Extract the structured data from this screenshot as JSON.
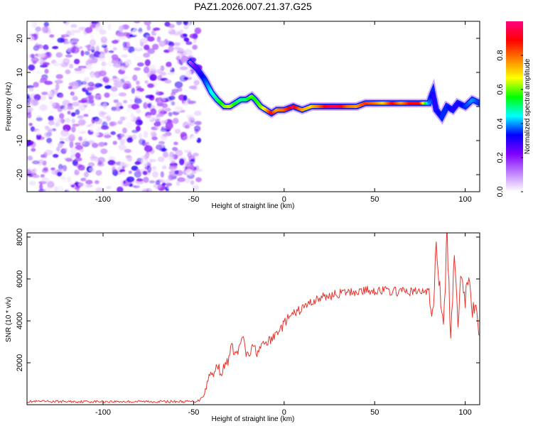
{
  "title": "PAZ1.2026.007.21.37.G25",
  "chart_data": [
    {
      "type": "heatmap",
      "title": "PAZ1.2026.007.21.37.G25",
      "xlabel": "Height of straight line (km)",
      "ylabel": "Frequency (Hz)",
      "xlim": [
        -142,
        108
      ],
      "ylim": [
        -25,
        25
      ],
      "x_ticks": [
        -100,
        -50,
        0,
        50,
        100
      ],
      "y_ticks": [
        -20,
        -10,
        0,
        10,
        20
      ],
      "colorbar": {
        "label": "Normalized spectral amplitude",
        "range": [
          0,
          1
        ],
        "ticks": [
          0.0,
          0.2,
          0.4,
          0.6,
          0.8
        ],
        "colors": [
          "#ffffff",
          "#c080ff",
          "#8000ff",
          "#0000ff",
          "#00ffff",
          "#00ff00",
          "#ffff00",
          "#ff8000",
          "#ff0000",
          "#ff0080"
        ]
      },
      "noise_region": {
        "x_range": [
          -142,
          -47
        ],
        "y_range": [
          -25,
          25
        ],
        "amplitude_range": [
          0.0,
          0.2
        ]
      },
      "signal_track": {
        "x": [
          -52,
          -48,
          -44,
          -40,
          -37,
          -33,
          -30,
          -27,
          -24,
          -21,
          -18,
          -16,
          -13,
          -10,
          -7,
          -4,
          0,
          5,
          10,
          15,
          20,
          25,
          30,
          35,
          40,
          45,
          50,
          55,
          60,
          65,
          70,
          75,
          80,
          82,
          84,
          87,
          90,
          93,
          96,
          100,
          104,
          108
        ],
        "y": [
          13,
          11,
          8,
          4,
          2,
          0,
          0,
          1,
          2,
          2,
          3,
          2,
          0,
          -1,
          -2,
          -1,
          -1,
          0,
          -1,
          0,
          0,
          0,
          0,
          0,
          0,
          1,
          1,
          1,
          1,
          1,
          1,
          1,
          1,
          4,
          -1,
          -3,
          0,
          -1,
          1,
          0,
          2,
          1
        ],
        "amplitude": [
          0.15,
          0.25,
          0.35,
          0.45,
          0.5,
          0.6,
          0.65,
          0.55,
          0.5,
          0.5,
          0.6,
          0.55,
          0.6,
          0.7,
          0.9,
          0.75,
          0.8,
          0.95,
          0.75,
          0.7,
          0.8,
          0.95,
          0.95,
          0.8,
          0.75,
          0.85,
          0.8,
          0.7,
          0.9,
          0.75,
          0.9,
          0.9,
          0.4,
          0.3,
          0.3,
          0.35,
          0.35,
          0.3,
          0.3,
          0.35,
          0.4,
          0.35
        ]
      }
    },
    {
      "type": "line",
      "xlabel": "Height of straight line (km)",
      "ylabel": "SNR (10 * v/v)",
      "xlim": [
        -142,
        108
      ],
      "ylim": [
        0,
        8200
      ],
      "x_ticks": [
        -100,
        -50,
        0,
        50,
        100
      ],
      "y_ticks": [
        2000,
        4000,
        6000,
        8000
      ],
      "series": [
        {
          "name": "SNR",
          "color": "#e8322a",
          "x": [
            -142,
            -100,
            -60,
            -50,
            -47,
            -45,
            -43,
            -41,
            -39,
            -37,
            -35,
            -33,
            -31,
            -29,
            -27,
            -25,
            -23,
            -21,
            -19,
            -17,
            -15,
            -13,
            -11,
            -9,
            -7,
            -5,
            -3,
            -1,
            0,
            2,
            5,
            10,
            15,
            20,
            25,
            30,
            35,
            40,
            45,
            50,
            55,
            60,
            65,
            70,
            75,
            80,
            82,
            84,
            86,
            88,
            90,
            92,
            94,
            96,
            98,
            100,
            102,
            104,
            106,
            108
          ],
          "y": [
            150,
            150,
            150,
            150,
            200,
            450,
            800,
            1600,
            1300,
            2000,
            1500,
            1800,
            2100,
            2800,
            2400,
            2600,
            3300,
            2400,
            2400,
            2800,
            2500,
            2700,
            2900,
            3000,
            3100,
            3300,
            3600,
            3700,
            3900,
            4100,
            4300,
            4600,
            4900,
            5100,
            5200,
            5300,
            5350,
            5400,
            5450,
            5450,
            5450,
            5400,
            5400,
            5400,
            5400,
            5400,
            4100,
            7700,
            5400,
            3600,
            8200,
            3100,
            6900,
            4100,
            6500,
            5100,
            6100,
            4600,
            5100,
            3300
          ]
        }
      ]
    }
  ]
}
